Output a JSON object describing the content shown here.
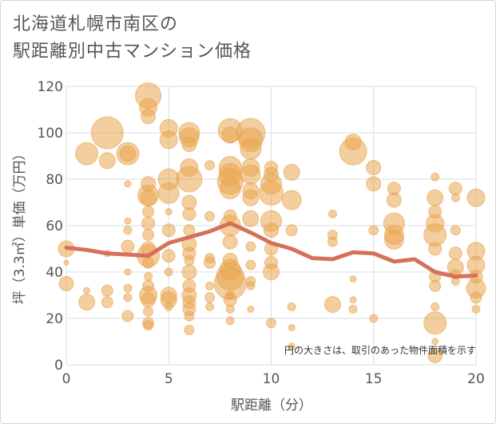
{
  "title_lines": [
    "北海道札幌市南区の",
    "駅距離別中古マンション価格"
  ],
  "note": "円の大きさは、取引のあった物件面積を示す",
  "colors": {
    "bubble_fill": "#eaa54f",
    "bubble_stroke": "#e8a04a",
    "trend_line": "#d6705a",
    "grid": "#d8dfe6",
    "plot_bg": "#ffffff"
  },
  "chart_data": {
    "type": "scatter",
    "title": "北海道札幌市南区の駅距離別中古マンション価格",
    "xlabel": "駅距離（分）",
    "ylabel": "坪（3.3㎡）単価（万円）",
    "xlim": [
      0,
      20
    ],
    "ylim": [
      0,
      120
    ],
    "xticks": [
      0,
      5,
      10,
      15,
      20
    ],
    "yticks": [
      0,
      20,
      40,
      60,
      80,
      100,
      120
    ],
    "grid": true,
    "bubble_size_meaning": "円の大きさは、取引のあった物件面積を示す",
    "points": [
      {
        "x": 0,
        "y": 50,
        "s": 10
      },
      {
        "x": 0,
        "y": 35,
        "s": 9
      },
      {
        "x": 0,
        "y": 44,
        "s": 3
      },
      {
        "x": 1,
        "y": 91,
        "s": 14
      },
      {
        "x": 1,
        "y": 27,
        "s": 10
      },
      {
        "x": 1,
        "y": 32,
        "s": 4
      },
      {
        "x": 2,
        "y": 100,
        "s": 20
      },
      {
        "x": 2,
        "y": 88,
        "s": 10
      },
      {
        "x": 2,
        "y": 32,
        "s": 7
      },
      {
        "x": 2,
        "y": 27,
        "s": 7
      },
      {
        "x": 2,
        "y": 48,
        "s": 4
      },
      {
        "x": 3,
        "y": 91,
        "s": 14
      },
      {
        "x": 3,
        "y": 91,
        "s": 10
      },
      {
        "x": 3,
        "y": 78,
        "s": 4
      },
      {
        "x": 3,
        "y": 62,
        "s": 4
      },
      {
        "x": 3,
        "y": 58,
        "s": 5
      },
      {
        "x": 3,
        "y": 51,
        "s": 8
      },
      {
        "x": 3,
        "y": 33,
        "s": 5
      },
      {
        "x": 3,
        "y": 29,
        "s": 5
      },
      {
        "x": 3,
        "y": 21,
        "s": 7
      },
      {
        "x": 3,
        "y": 40,
        "s": 4
      },
      {
        "x": 4,
        "y": 116,
        "s": 16
      },
      {
        "x": 4,
        "y": 111,
        "s": 11
      },
      {
        "x": 4,
        "y": 107,
        "s": 9
      },
      {
        "x": 4,
        "y": 78,
        "s": 9
      },
      {
        "x": 4,
        "y": 73,
        "s": 13
      },
      {
        "x": 4,
        "y": 72,
        "s": 10
      },
      {
        "x": 4,
        "y": 66,
        "s": 7
      },
      {
        "x": 4,
        "y": 61,
        "s": 8
      },
      {
        "x": 4,
        "y": 56,
        "s": 7
      },
      {
        "x": 4,
        "y": 50,
        "s": 9
      },
      {
        "x": 4,
        "y": 47,
        "s": 14
      },
      {
        "x": 4,
        "y": 44,
        "s": 7
      },
      {
        "x": 4,
        "y": 38,
        "s": 5
      },
      {
        "x": 4,
        "y": 34,
        "s": 7
      },
      {
        "x": 4,
        "y": 30,
        "s": 11
      },
      {
        "x": 4,
        "y": 28,
        "s": 9
      },
      {
        "x": 4,
        "y": 23,
        "s": 6
      },
      {
        "x": 4,
        "y": 18,
        "s": 7
      },
      {
        "x": 4,
        "y": 17,
        "s": 6
      },
      {
        "x": 5,
        "y": 102,
        "s": 11
      },
      {
        "x": 5,
        "y": 97,
        "s": 11
      },
      {
        "x": 5,
        "y": 80,
        "s": 13
      },
      {
        "x": 5,
        "y": 74,
        "s": 13
      },
      {
        "x": 5,
        "y": 66,
        "s": 4
      },
      {
        "x": 5,
        "y": 58,
        "s": 8
      },
      {
        "x": 5,
        "y": 47,
        "s": 8
      },
      {
        "x": 5,
        "y": 40,
        "s": 5
      },
      {
        "x": 5,
        "y": 30,
        "s": 10
      },
      {
        "x": 5,
        "y": 28,
        "s": 10
      },
      {
        "x": 5,
        "y": 25,
        "s": 5
      },
      {
        "x": 6,
        "y": 100,
        "s": 13
      },
      {
        "x": 6,
        "y": 98,
        "s": 12
      },
      {
        "x": 6,
        "y": 95,
        "s": 9
      },
      {
        "x": 6,
        "y": 85,
        "s": 11
      },
      {
        "x": 6,
        "y": 80,
        "s": 16
      },
      {
        "x": 6,
        "y": 70,
        "s": 9
      },
      {
        "x": 6,
        "y": 65,
        "s": 8
      },
      {
        "x": 6,
        "y": 58,
        "s": 7
      },
      {
        "x": 6,
        "y": 52,
        "s": 9
      },
      {
        "x": 6,
        "y": 48,
        "s": 8
      },
      {
        "x": 6,
        "y": 45,
        "s": 6
      },
      {
        "x": 6,
        "y": 40,
        "s": 9
      },
      {
        "x": 6,
        "y": 34,
        "s": 8
      },
      {
        "x": 6,
        "y": 30,
        "s": 9
      },
      {
        "x": 6,
        "y": 27,
        "s": 8
      },
      {
        "x": 6,
        "y": 24,
        "s": 8
      },
      {
        "x": 6,
        "y": 21,
        "s": 6
      },
      {
        "x": 6,
        "y": 15,
        "s": 6
      },
      {
        "x": 7,
        "y": 86,
        "s": 6
      },
      {
        "x": 7,
        "y": 64,
        "s": 6
      },
      {
        "x": 7,
        "y": 46,
        "s": 6
      },
      {
        "x": 7,
        "y": 44,
        "s": 7
      },
      {
        "x": 7,
        "y": 34,
        "s": 5
      },
      {
        "x": 7,
        "y": 29,
        "s": 6
      },
      {
        "x": 7,
        "y": 25,
        "s": 5
      },
      {
        "x": 8,
        "y": 101,
        "s": 15
      },
      {
        "x": 8,
        "y": 99,
        "s": 10
      },
      {
        "x": 8,
        "y": 85,
        "s": 14
      },
      {
        "x": 8,
        "y": 82,
        "s": 14
      },
      {
        "x": 8,
        "y": 79,
        "s": 16
      },
      {
        "x": 8,
        "y": 76,
        "s": 13
      },
      {
        "x": 8,
        "y": 64,
        "s": 8
      },
      {
        "x": 8,
        "y": 60,
        "s": 13
      },
      {
        "x": 8,
        "y": 53,
        "s": 9
      },
      {
        "x": 8,
        "y": 45,
        "s": 9
      },
      {
        "x": 8,
        "y": 41,
        "s": 13
      },
      {
        "x": 8,
        "y": 38,
        "s": 17
      },
      {
        "x": 8,
        "y": 35,
        "s": 20
      },
      {
        "x": 8,
        "y": 30,
        "s": 5
      },
      {
        "x": 8,
        "y": 28,
        "s": 8
      },
      {
        "x": 8,
        "y": 24,
        "s": 5
      },
      {
        "x": 8,
        "y": 19,
        "s": 5
      },
      {
        "x": 9,
        "y": 100,
        "s": 18
      },
      {
        "x": 9,
        "y": 97,
        "s": 15
      },
      {
        "x": 9,
        "y": 93,
        "s": 13
      },
      {
        "x": 9,
        "y": 85,
        "s": 11
      },
      {
        "x": 9,
        "y": 82,
        "s": 12
      },
      {
        "x": 9,
        "y": 75,
        "s": 10
      },
      {
        "x": 9,
        "y": 72,
        "s": 10
      },
      {
        "x": 9,
        "y": 63,
        "s": 10
      },
      {
        "x": 9,
        "y": 51,
        "s": 6
      },
      {
        "x": 9,
        "y": 43,
        "s": 6
      },
      {
        "x": 9,
        "y": 36,
        "s": 6
      },
      {
        "x": 9,
        "y": 34,
        "s": 5
      },
      {
        "x": 9,
        "y": 24,
        "s": 4
      },
      {
        "x": 10,
        "y": 85,
        "s": 8
      },
      {
        "x": 10,
        "y": 82,
        "s": 9
      },
      {
        "x": 10,
        "y": 78,
        "s": 13
      },
      {
        "x": 10,
        "y": 74,
        "s": 15
      },
      {
        "x": 10,
        "y": 62,
        "s": 13
      },
      {
        "x": 10,
        "y": 58,
        "s": 9
      },
      {
        "x": 10,
        "y": 50,
        "s": 8
      },
      {
        "x": 10,
        "y": 44,
        "s": 8
      },
      {
        "x": 10,
        "y": 40,
        "s": 10
      },
      {
        "x": 10,
        "y": 18,
        "s": 6
      },
      {
        "x": 11,
        "y": 83,
        "s": 10
      },
      {
        "x": 11,
        "y": 71,
        "s": 12
      },
      {
        "x": 11,
        "y": 58,
        "s": 7
      },
      {
        "x": 11,
        "y": 25,
        "s": 5
      },
      {
        "x": 11,
        "y": 16,
        "s": 4
      },
      {
        "x": 11,
        "y": 8,
        "s": 4
      },
      {
        "x": 13,
        "y": 65,
        "s": 5
      },
      {
        "x": 13,
        "y": 56,
        "s": 6
      },
      {
        "x": 13,
        "y": 53,
        "s": 6
      },
      {
        "x": 13,
        "y": 26,
        "s": 10
      },
      {
        "x": 14,
        "y": 96,
        "s": 10
      },
      {
        "x": 14,
        "y": 92,
        "s": 17
      },
      {
        "x": 14,
        "y": 37,
        "s": 4
      },
      {
        "x": 14,
        "y": 28,
        "s": 4
      },
      {
        "x": 14,
        "y": 24,
        "s": 5
      },
      {
        "x": 15,
        "y": 85,
        "s": 9
      },
      {
        "x": 15,
        "y": 78,
        "s": 9
      },
      {
        "x": 15,
        "y": 58,
        "s": 6
      },
      {
        "x": 15,
        "y": 20,
        "s": 5
      },
      {
        "x": 16,
        "y": 76,
        "s": 8
      },
      {
        "x": 16,
        "y": 71,
        "s": 9
      },
      {
        "x": 16,
        "y": 61,
        "s": 13
      },
      {
        "x": 16,
        "y": 56,
        "s": 12
      },
      {
        "x": 16,
        "y": 54,
        "s": 12
      },
      {
        "x": 18,
        "y": 81,
        "s": 5
      },
      {
        "x": 18,
        "y": 72,
        "s": 10
      },
      {
        "x": 18,
        "y": 66,
        "s": 8
      },
      {
        "x": 18,
        "y": 61,
        "s": 11
      },
      {
        "x": 18,
        "y": 56,
        "s": 14
      },
      {
        "x": 18,
        "y": 50,
        "s": 8
      },
      {
        "x": 18,
        "y": 38,
        "s": 7
      },
      {
        "x": 18,
        "y": 34,
        "s": 7
      },
      {
        "x": 18,
        "y": 25,
        "s": 5
      },
      {
        "x": 18,
        "y": 18,
        "s": 14
      },
      {
        "x": 18,
        "y": 10,
        "s": 4
      },
      {
        "x": 18,
        "y": 4,
        "s": 9
      },
      {
        "x": 19,
        "y": 76,
        "s": 8
      },
      {
        "x": 19,
        "y": 72,
        "s": 5
      },
      {
        "x": 19,
        "y": 58,
        "s": 6
      },
      {
        "x": 19,
        "y": 48,
        "s": 8
      },
      {
        "x": 19,
        "y": 42,
        "s": 10
      },
      {
        "x": 19,
        "y": 39,
        "s": 6
      },
      {
        "x": 19,
        "y": 36,
        "s": 5
      },
      {
        "x": 20,
        "y": 72,
        "s": 11
      },
      {
        "x": 20,
        "y": 49,
        "s": 11
      },
      {
        "x": 20,
        "y": 43,
        "s": 11
      },
      {
        "x": 20,
        "y": 38,
        "s": 8
      },
      {
        "x": 20,
        "y": 33,
        "s": 12
      },
      {
        "x": 20,
        "y": 29,
        "s": 7
      },
      {
        "x": 20,
        "y": 24,
        "s": 5
      }
    ],
    "trend": {
      "x": [
        0,
        1,
        2,
        3,
        4,
        5,
        6,
        7,
        8,
        9,
        10,
        11,
        12,
        13,
        14,
        15,
        16,
        17,
        18,
        19,
        20
      ],
      "y": [
        50.5,
        49.5,
        48,
        47.5,
        47,
        52.5,
        55,
        57.5,
        61,
        57,
        52.5,
        50,
        46,
        45.5,
        48.5,
        48,
        44.5,
        45.5,
        40,
        38,
        38.5
      ]
    }
  }
}
